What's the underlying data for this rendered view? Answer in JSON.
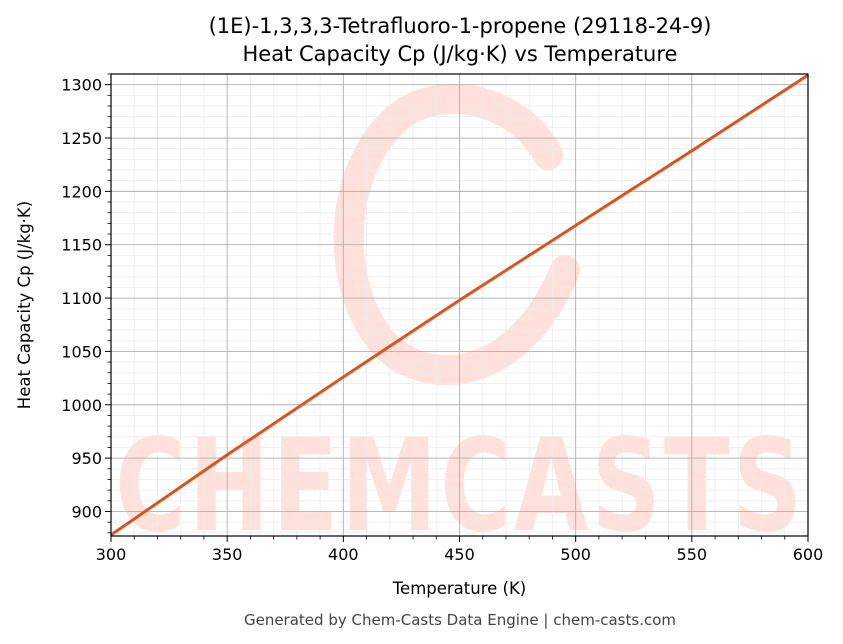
{
  "chart_data": {
    "type": "line",
    "title": "(1E)-1,3,3,3-Tetrafluoro-1-propene (29118-24-9)",
    "subtitle": "Heat Capacity Cp (J/kg·K) vs Temperature",
    "xlabel": "Temperature (K)",
    "ylabel": "Heat Capacity Cp (J/kg·K)",
    "xlim": [
      300,
      600
    ],
    "ylim": [
      877,
      1310
    ],
    "xticks": [
      300,
      350,
      400,
      450,
      500,
      550,
      600
    ],
    "yticks": [
      900,
      950,
      1000,
      1050,
      1100,
      1150,
      1200,
      1250,
      1300
    ],
    "grid": true,
    "series": [
      {
        "color": "#d9541e",
        "x": [
          300,
          350,
          400,
          450,
          500,
          550,
          600
        ],
        "y": [
          878,
          953,
          1026,
          1098,
          1168,
          1238,
          1309
        ]
      }
    ]
  },
  "watermark": {
    "text": "CHEMCASTS",
    "color": "#ffe0da"
  },
  "footer": "Generated by Chem-Casts Data Engine | chem-casts.com"
}
